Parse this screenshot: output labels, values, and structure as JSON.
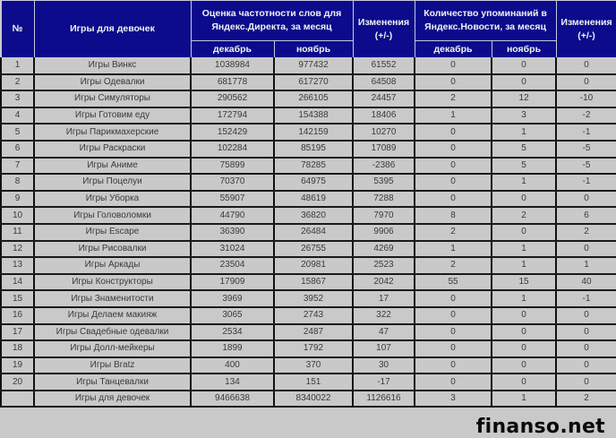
{
  "header": {
    "num": "№",
    "name": "Игры для девочек",
    "direct": "Оценка частотности слов для Яндекс.Директа, за месяц",
    "direct_change": "Изменения (+/-)",
    "news": "Количество упоминаний в Яндекс.Новости, за месяц",
    "news_change": "Изменения (+/-)",
    "dec": "декабрь",
    "nov": "ноябрь",
    "dec2": "декабрь",
    "nov2": "ноябрь"
  },
  "rows": [
    [
      "1",
      "Игры Винкс",
      "1038984",
      "977432",
      "61552",
      "0",
      "0",
      "0"
    ],
    [
      "2",
      "Игры Одевалки",
      "681778",
      "617270",
      "64508",
      "0",
      "0",
      "0"
    ],
    [
      "3",
      "Игры Симуляторы",
      "290562",
      "266105",
      "24457",
      "2",
      "12",
      "-10"
    ],
    [
      "4",
      "Игры Готовим еду",
      "172794",
      "154388",
      "18406",
      "1",
      "3",
      "-2"
    ],
    [
      "5",
      "Игры Парикмахерские",
      "152429",
      "142159",
      "10270",
      "0",
      "1",
      "-1"
    ],
    [
      "6",
      "Игры Раскраски",
      "102284",
      "85195",
      "17089",
      "0",
      "5",
      "-5"
    ],
    [
      "7",
      "Игры Аниме",
      "75899",
      "78285",
      "-2386",
      "0",
      "5",
      "-5"
    ],
    [
      "8",
      "Игры Поцелуи",
      "70370",
      "64975",
      "5395",
      "0",
      "1",
      "-1"
    ],
    [
      "9",
      "Игры Уборка",
      "55907",
      "48619",
      "7288",
      "0",
      "0",
      "0"
    ],
    [
      "10",
      "Игры Головоломки",
      "44790",
      "36820",
      "7970",
      "8",
      "2",
      "6"
    ],
    [
      "11",
      "Игры Escape",
      "36390",
      "26484",
      "9906",
      "2",
      "0",
      "2"
    ],
    [
      "12",
      "Игры Рисовалки",
      "31024",
      "26755",
      "4269",
      "1",
      "1",
      "0"
    ],
    [
      "13",
      "Игры Аркады",
      "23504",
      "20981",
      "2523",
      "2",
      "1",
      "1"
    ],
    [
      "14",
      "Игры Конструкторы",
      "17909",
      "15867",
      "2042",
      "55",
      "15",
      "40"
    ],
    [
      "15",
      "Игры Знаменитости",
      "3969",
      "3952",
      "17",
      "0",
      "1",
      "-1"
    ],
    [
      "16",
      "Игры Делаем макияж",
      "3065",
      "2743",
      "322",
      "0",
      "0",
      "0"
    ],
    [
      "17",
      "Игры Свадебные одевалки",
      "2534",
      "2487",
      "47",
      "0",
      "0",
      "0"
    ],
    [
      "18",
      "Игры Долл-мейкеры",
      "1899",
      "1792",
      "107",
      "0",
      "0",
      "0"
    ],
    [
      "19",
      "Игры Bratz",
      "400",
      "370",
      "30",
      "0",
      "0",
      "0"
    ],
    [
      "20",
      "Игры Танцевалки",
      "134",
      "151",
      "-17",
      "0",
      "0",
      "0"
    ],
    [
      "",
      "Игры для девочек",
      "9466638",
      "8340022",
      "1126616",
      "3",
      "1",
      "2"
    ]
  ],
  "watermark": "finanso.net",
  "colors": {
    "header_bg": "#0b0b8c",
    "row_bg": "#c9c9c9"
  }
}
